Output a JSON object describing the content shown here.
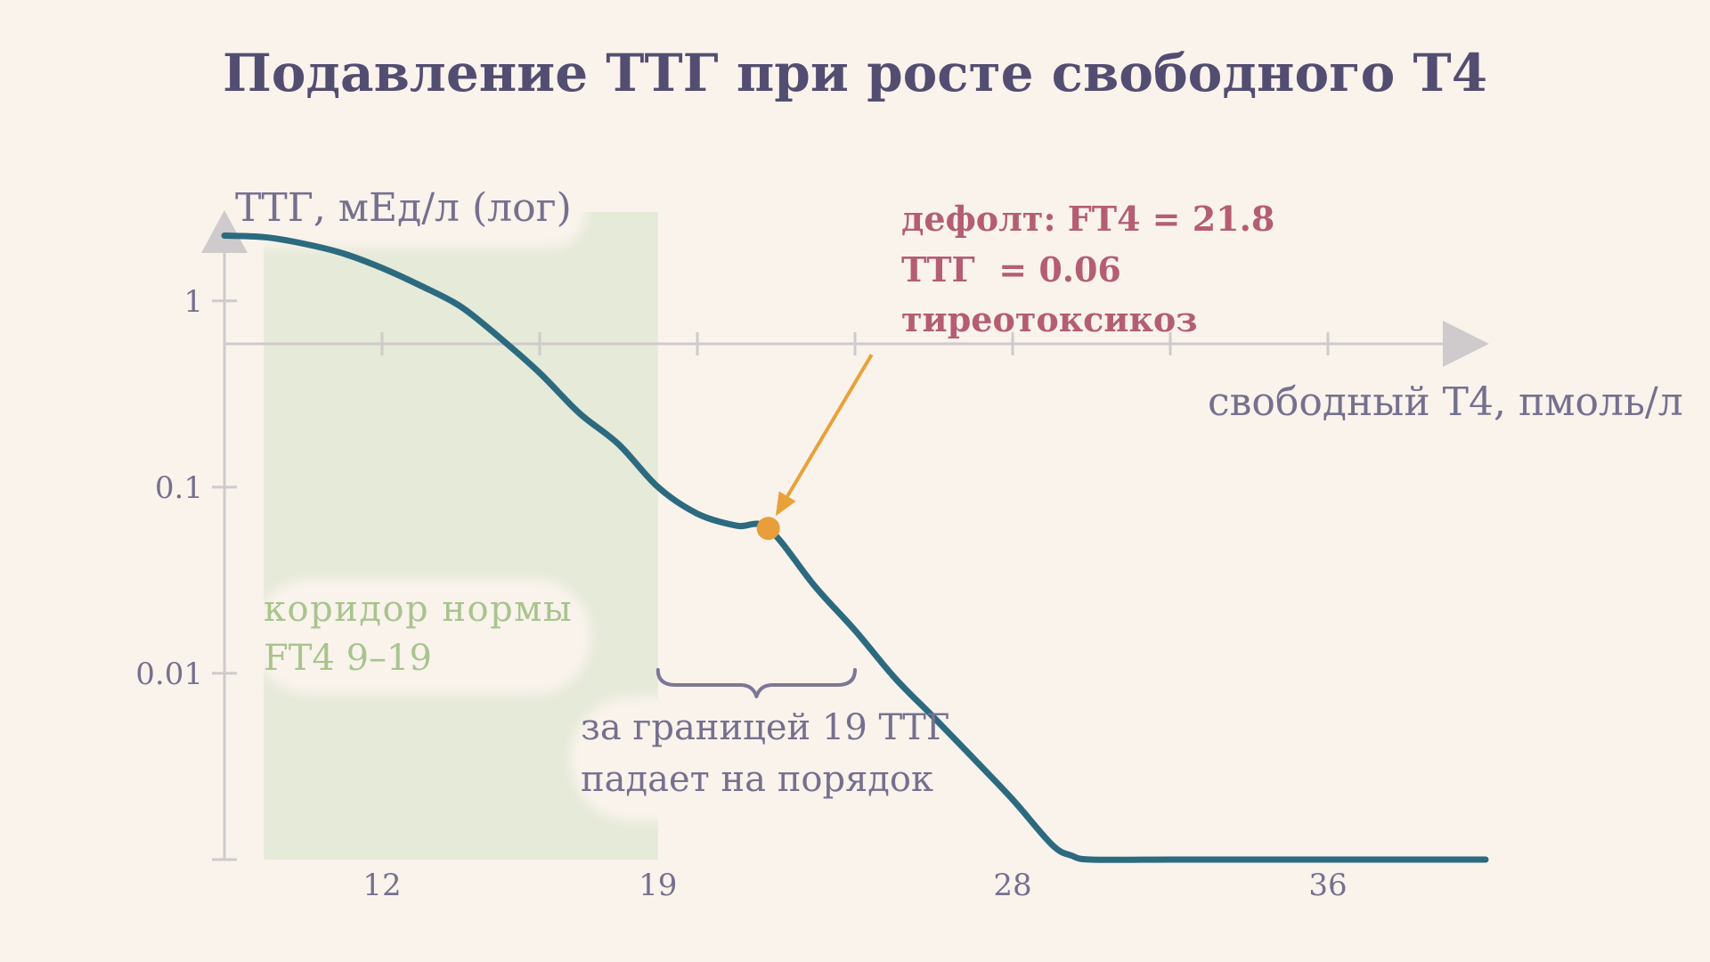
{
  "chart_data": {
    "type": "line",
    "title": "Подавление ТТГ при росте свободного Т4",
    "xlabel": "свободный Т4, пмоль/л",
    "ylabel": "ТТГ, мЕд/л (лог)",
    "y_scale": "log",
    "xlim": [
      8,
      40
    ],
    "ylim": [
      0.001,
      3
    ],
    "x_ticks": [
      12,
      19,
      28,
      36
    ],
    "x_minor_ticks": [
      12,
      16,
      20,
      24,
      28,
      32,
      36
    ],
    "y_ticks": [
      {
        "value": 1,
        "label": "1"
      },
      {
        "value": 0.1,
        "label": "0.1"
      },
      {
        "value": 0.01,
        "label": "0.01"
      }
    ],
    "series": [
      {
        "x": [
          8,
          9,
          10,
          11,
          12,
          13,
          14,
          15,
          16,
          17,
          18,
          19,
          20,
          21,
          21.8,
          23,
          24,
          25,
          26,
          27,
          28,
          29,
          29.5,
          30,
          32,
          34,
          36,
          38,
          40
        ],
        "y": [
          2.24,
          2.2,
          2.03,
          1.8,
          1.5,
          1.2,
          0.93,
          0.63,
          0.41,
          0.25,
          0.17,
          0.1,
          0.072,
          0.062,
          0.06,
          0.029,
          0.017,
          0.0095,
          0.0058,
          0.0035,
          0.0021,
          0.0012,
          0.00105,
          0.001,
          0.001,
          0.001,
          0.001,
          0.001,
          0.001
        ]
      }
    ],
    "normal_band": {
      "x_start": 9,
      "x_end": 19,
      "label_line1": "коридор нормы",
      "label_line2": "FT4 9–19"
    },
    "highlight_point": {
      "x": 21.8,
      "y": 0.06
    },
    "callout": {
      "line1": "дефолт: FT4 = 21.8",
      "line2": "ТТГ  = 0.06",
      "line3": "тиреотоксикоз"
    },
    "brace_annotation": {
      "x_start": 19,
      "x_end": 24,
      "line1": "за границей 19 ТТГ",
      "line2": "падает на порядок"
    },
    "colors": {
      "background": "#f9f3ec",
      "curve": "#2c6a80",
      "band": "#e6ead9",
      "band_text": "#a9c48e",
      "axis": "#cfcbcc",
      "axis_text": "#76708f",
      "title": "#544d72",
      "point": "#e89e3a",
      "arrow": "#e9a13a",
      "callout": "#b45d73",
      "brace": "#7d7796"
    }
  }
}
